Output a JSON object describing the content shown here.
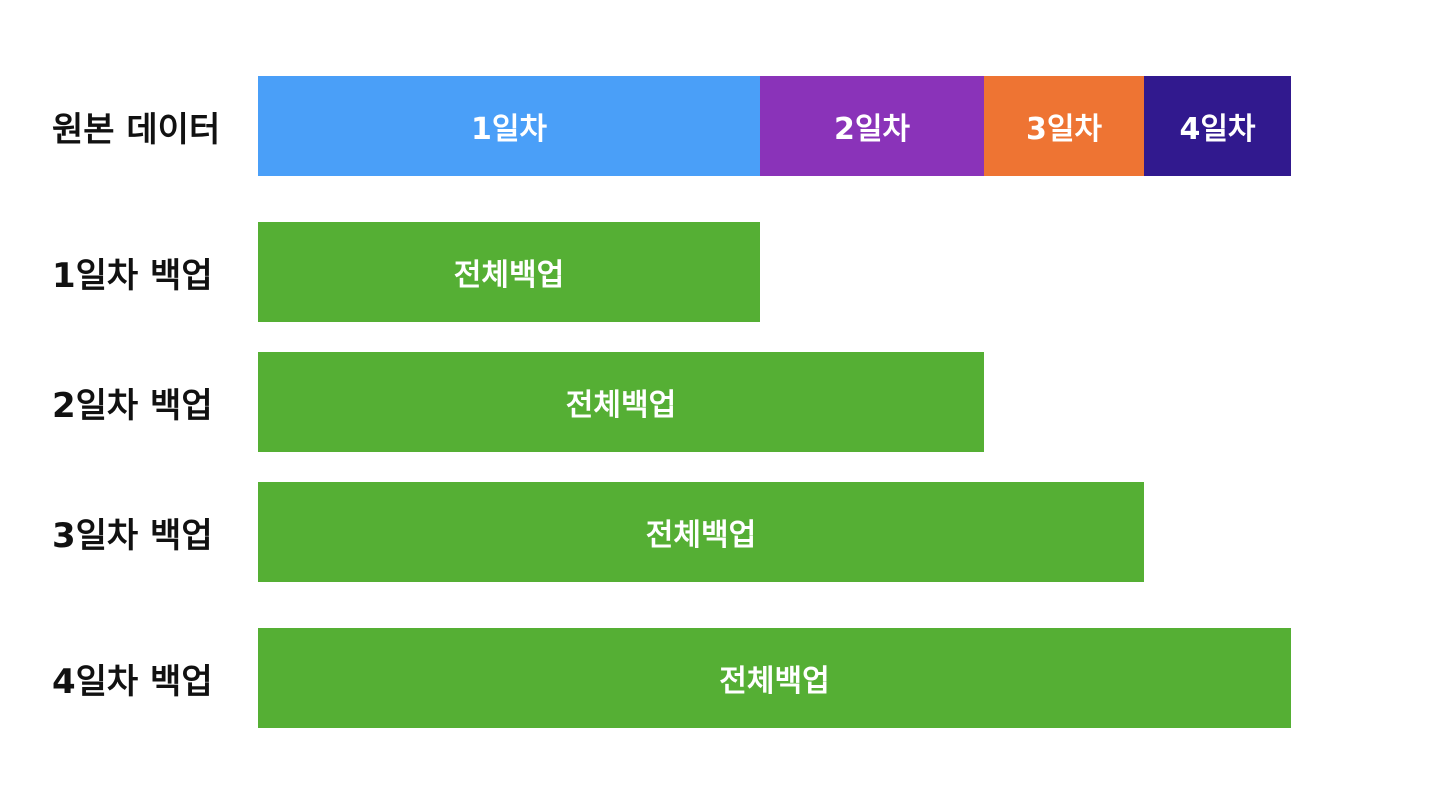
{
  "diagram": {
    "max_day": 4,
    "original": {
      "label": "원본 데이터",
      "segments": [
        {
          "label": "1일차",
          "day": 1,
          "color": "#4A9FF8"
        },
        {
          "label": "2일차",
          "day": 2,
          "color": "#8A33B9"
        },
        {
          "label": "3일차",
          "day": 3,
          "color": "#EE7433"
        },
        {
          "label": "4일차",
          "day": 4,
          "color": "#31198E"
        }
      ]
    },
    "backups": [
      {
        "label": "1일차 백업",
        "bar_label": "전체백업",
        "covers_through_day": 1,
        "color": "#55AF34"
      },
      {
        "label": "2일차 백업",
        "bar_label": "전체백업",
        "covers_through_day": 2,
        "color": "#55AF34"
      },
      {
        "label": "3일차 백업",
        "bar_label": "전체백업",
        "covers_through_day": 3,
        "color": "#55AF34"
      },
      {
        "label": "4일차 백업",
        "bar_label": "전체백업",
        "covers_through_day": 4,
        "color": "#55AF34"
      }
    ]
  }
}
